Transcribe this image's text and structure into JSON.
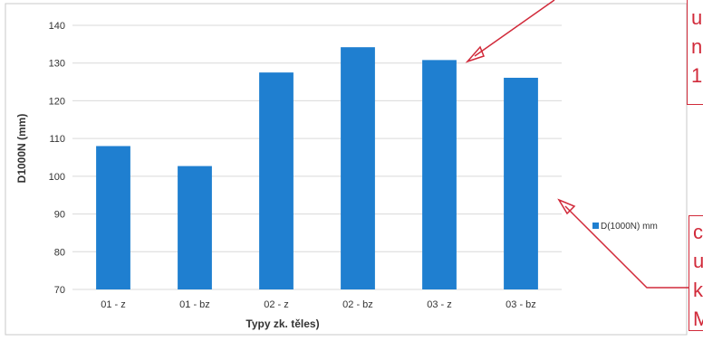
{
  "chart_data": {
    "type": "bar",
    "categories": [
      "01 - z",
      "01 - bz",
      "02 - z",
      "02 - bz",
      "03 - z",
      "03 - bz"
    ],
    "series": [
      {
        "name": "D(1000N) mm",
        "values": [
          108,
          102.7,
          127.5,
          134.2,
          130.8,
          126.1
        ]
      }
    ],
    "xlabel": "Typy zk. těles)",
    "ylabel": "D1000N (mm)",
    "ylim": [
      70,
      140
    ],
    "yticks": [
      70,
      80,
      90,
      100,
      110,
      120,
      130,
      140
    ],
    "grid": true,
    "legend_position": "right",
    "bar_color": "#1f7fd0",
    "annotation_color": "#d12a3a"
  },
  "annotations": {
    "top": "u\nn\n1",
    "bottom": "c\nu\nk\nM"
  }
}
